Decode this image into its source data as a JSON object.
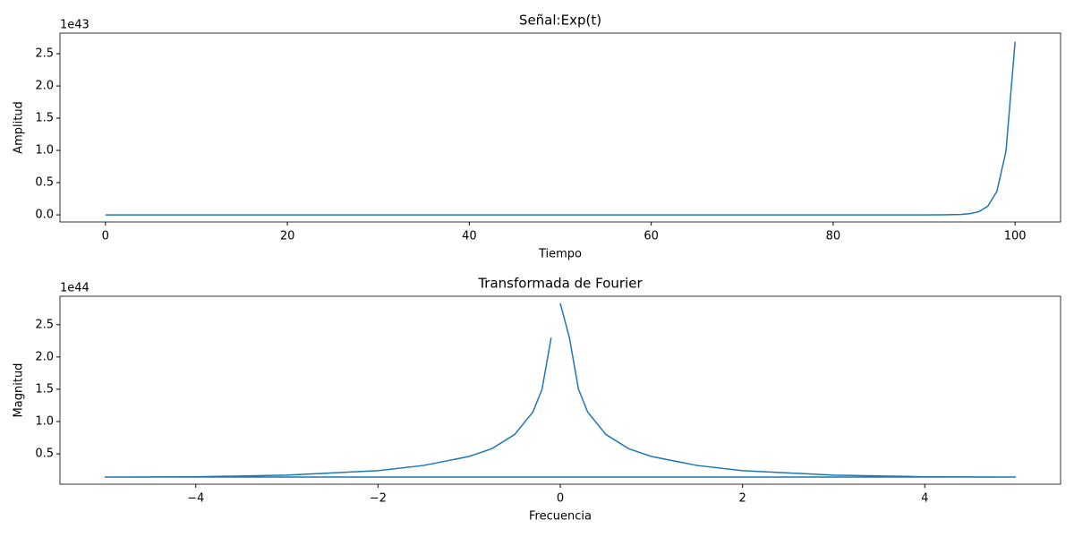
{
  "chart_data": [
    {
      "type": "line",
      "title": "Señal:Exp(t)",
      "x_label": "Tiempo",
      "y_label": "Amplitud",
      "y_offset_label": "1e43",
      "x": [
        0,
        10,
        20,
        30,
        40,
        50,
        60,
        70,
        80,
        90,
        92,
        94,
        95,
        96,
        97,
        98,
        99,
        100
      ],
      "series": [
        {
          "color": "#1f77b4",
          "values": [
            0,
            0,
            0,
            0,
            0,
            0,
            0,
            0,
            0,
            0.000122,
            0.0009,
            0.0067,
            0.018,
            0.049,
            0.134,
            0.364,
            0.989,
            2.688
          ]
        }
      ],
      "xlim": [
        -5,
        105
      ],
      "ylim": [
        -0.11,
        2.82
      ],
      "xticks": [
        0,
        20,
        40,
        60,
        80,
        100
      ],
      "yticks": [
        {
          "value": 0,
          "label": "0.0"
        },
        0.5,
        {
          "value": 1,
          "label": "1.0"
        },
        1.5,
        {
          "value": 2,
          "label": "2.0"
        },
        2.5
      ]
    },
    {
      "type": "line",
      "title": "Transformada de Fourier",
      "x_label": "Frecuencia",
      "y_label": "Magnitud",
      "y_offset_label": "1e44",
      "x": [
        0,
        0.1,
        0.2,
        0.3,
        0.5,
        0.75,
        1,
        1.5,
        2,
        3,
        4,
        5,
        -5,
        -4,
        -3,
        -2,
        -1.5,
        -1,
        -0.75,
        -0.5,
        -0.3,
        -0.2,
        -0.1
      ],
      "series": [
        {
          "color": "#1f77b4",
          "values": [
            2.83,
            2.3,
            1.5,
            1.15,
            0.8,
            0.58,
            0.46,
            0.32,
            0.24,
            0.17,
            0.145,
            0.14,
            0.14,
            0.145,
            0.17,
            0.24,
            0.32,
            0.46,
            0.58,
            0.8,
            1.15,
            1.5,
            2.3
          ]
        }
      ],
      "xlim": [
        -5.49,
        5.49
      ],
      "ylim": [
        0.03,
        2.94
      ],
      "xticks": [
        {
          "value": -4,
          "label": "−4"
        },
        {
          "value": -2,
          "label": "−2"
        },
        0,
        2,
        4
      ],
      "yticks": [
        0.5,
        {
          "value": 1,
          "label": "1.0"
        },
        1.5,
        {
          "value": 2,
          "label": "2.0"
        },
        2.5
      ]
    }
  ]
}
